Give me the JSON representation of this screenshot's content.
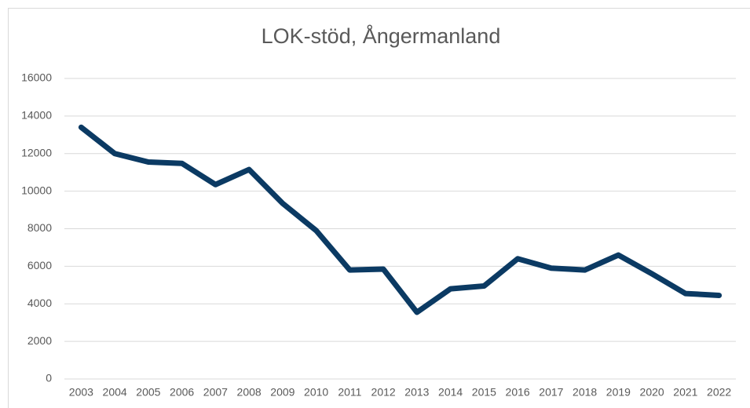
{
  "chart_data": {
    "type": "line",
    "title": "LOK-stöd, Ångermanland",
    "categories": [
      "2003",
      "2004",
      "2005",
      "2006",
      "2007",
      "2008",
      "2009",
      "2010",
      "2011",
      "2012",
      "2013",
      "2014",
      "2015",
      "2016",
      "2017",
      "2018",
      "2019",
      "2020",
      "2021",
      "2022"
    ],
    "series": [
      {
        "name": "LOK-stöd",
        "color": "#0b3a63",
        "values": [
          13400,
          12000,
          11550,
          11480,
          10350,
          11150,
          9350,
          7900,
          5800,
          5850,
          3550,
          4800,
          4950,
          6400,
          5900,
          5800,
          6600,
          5600,
          4550,
          4450
        ]
      }
    ],
    "ylim": [
      0,
      16000
    ],
    "yticks": [
      0,
      2000,
      4000,
      6000,
      8000,
      10000,
      12000,
      14000,
      16000
    ],
    "grid": true,
    "legend": false
  }
}
